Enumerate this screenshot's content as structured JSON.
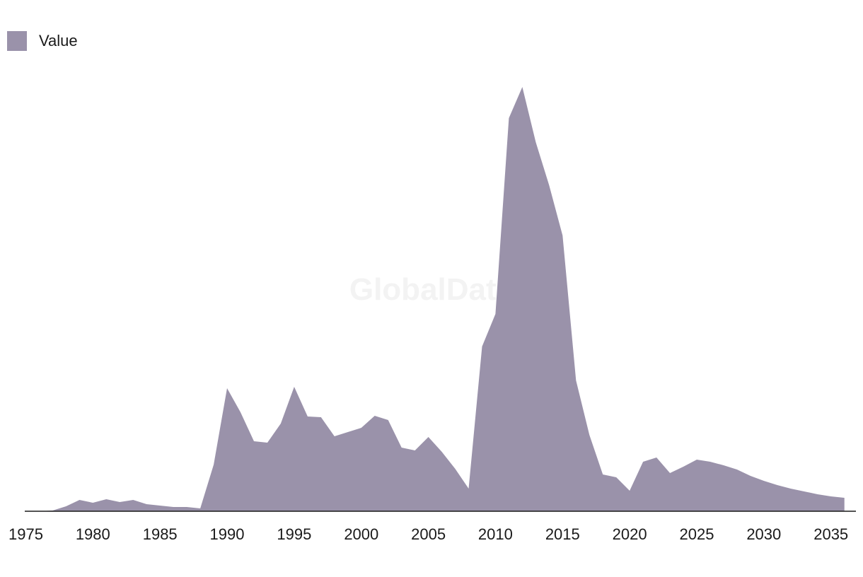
{
  "watermark": "GlobalData",
  "chart_data": {
    "type": "area",
    "series": [
      {
        "name": "Value",
        "color": "#9a92aa",
        "x": [
          1976,
          1977,
          1978,
          1979,
          1980,
          1981,
          1982,
          1983,
          1984,
          1985,
          1986,
          1987,
          1988,
          1989,
          1990,
          1991,
          1992,
          1993,
          1994,
          1995,
          1996,
          1997,
          1998,
          1999,
          2000,
          2001,
          2002,
          2003,
          2004,
          2005,
          2006,
          2007,
          2008,
          2009,
          2010,
          2011,
          2012,
          2013,
          2014,
          2015,
          2016,
          2017,
          2018,
          2019,
          2020,
          2021,
          2022,
          2023,
          2024,
          2025,
          2026,
          2027,
          2028,
          2029,
          2030,
          2031,
          2032,
          2033,
          2034,
          2035,
          2036
        ],
        "values": [
          0,
          0.5,
          3.5,
          8,
          6,
          8.5,
          6.5,
          8,
          5,
          4,
          3,
          3,
          2,
          33,
          87,
          70,
          49.5,
          48.5,
          62,
          88,
          67,
          66.5,
          53,
          56,
          59,
          67.5,
          64.5,
          45,
          43,
          52.5,
          42,
          30,
          16,
          116.5,
          139.5,
          278,
          300,
          261,
          230.5,
          195,
          92.5,
          54,
          26,
          24,
          14.5,
          35,
          38,
          27,
          31.5,
          36.5,
          35,
          32.5,
          29.5,
          25,
          21.5,
          18.5,
          16,
          14,
          12,
          10.5,
          9.5
        ]
      }
    ],
    "xlim": [
      1975,
      2037
    ],
    "ylim": [
      0,
      320
    ],
    "xticks": [
      "1975",
      "1980",
      "1985",
      "1990",
      "1995",
      "2000",
      "2005",
      "2010",
      "2015",
      "2020",
      "2025",
      "2030",
      "2035"
    ],
    "legend": "top-left",
    "grid": false
  }
}
